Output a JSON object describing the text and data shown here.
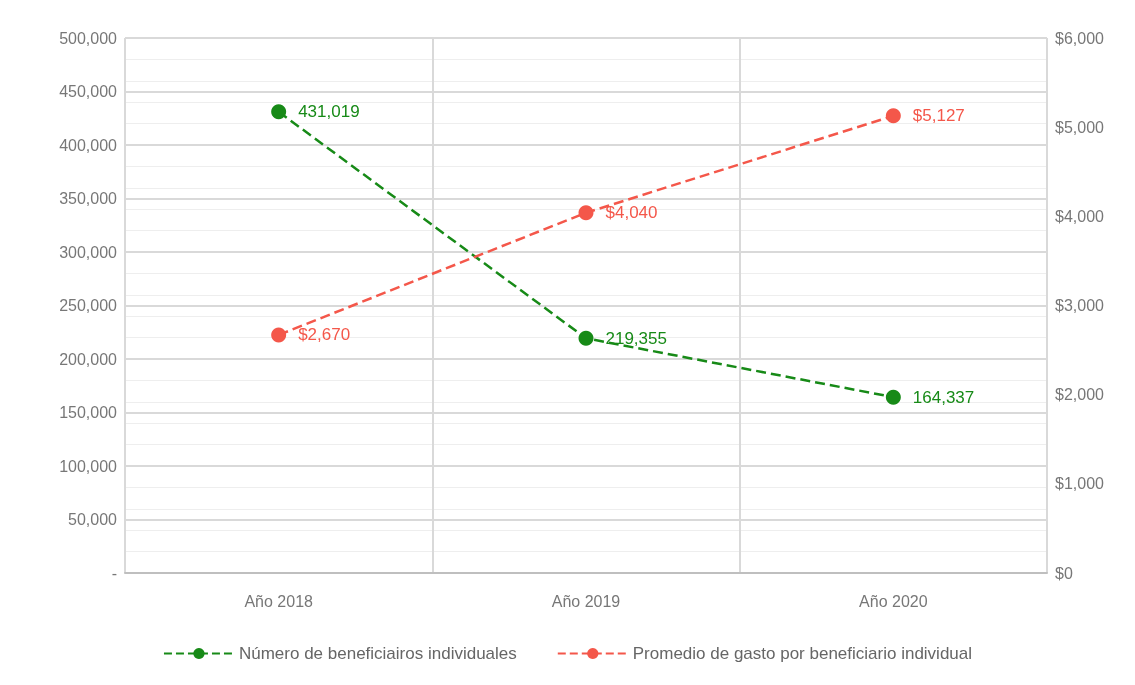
{
  "chart_data": {
    "type": "line",
    "categories": [
      "Año 2018",
      "Año 2019",
      "Año 2020"
    ],
    "series": [
      {
        "name": "Número de beneficiairos individuales",
        "color": "#178a17",
        "values": [
          431019,
          219355,
          164337
        ],
        "value_labels": [
          "431,019",
          "219,355",
          "164,337"
        ]
      },
      {
        "name": "Promedio de gasto por beneficiario individual",
        "color": "#f4574a",
        "axis": "y2",
        "values": [
          2670,
          4040,
          5127
        ],
        "value_labels": [
          "$2,670",
          "$4,040",
          "$5,127"
        ]
      }
    ],
    "ylim": [
      0,
      500000
    ],
    "yticks": [
      {
        "value": 0,
        "label": "-"
      },
      {
        "value": 50000,
        "label": "50,000"
      },
      {
        "value": 100000,
        "label": "100,000"
      },
      {
        "value": 150000,
        "label": "150,000"
      },
      {
        "value": 200000,
        "label": "200,000"
      },
      {
        "value": 250000,
        "label": "250,000"
      },
      {
        "value": 300000,
        "label": "300,000"
      },
      {
        "value": 350000,
        "label": "350,000"
      },
      {
        "value": 400000,
        "label": "400,000"
      },
      {
        "value": 450000,
        "label": "450,000"
      },
      {
        "value": 500000,
        "label": "500,000"
      }
    ],
    "y2lim": [
      0,
      6000
    ],
    "y2ticks": [
      {
        "value": 0,
        "label": "$0"
      },
      {
        "value": 1000,
        "label": "$1,000"
      },
      {
        "value": 2000,
        "label": "$2,000"
      },
      {
        "value": 3000,
        "label": "$3,000"
      },
      {
        "value": 4000,
        "label": "$4,000"
      },
      {
        "value": 5000,
        "label": "$5,000"
      },
      {
        "value": 6000,
        "label": "$6,000"
      }
    ],
    "grid": true,
    "legend": "bottom",
    "marker": "circle",
    "line_style": "dashed"
  }
}
